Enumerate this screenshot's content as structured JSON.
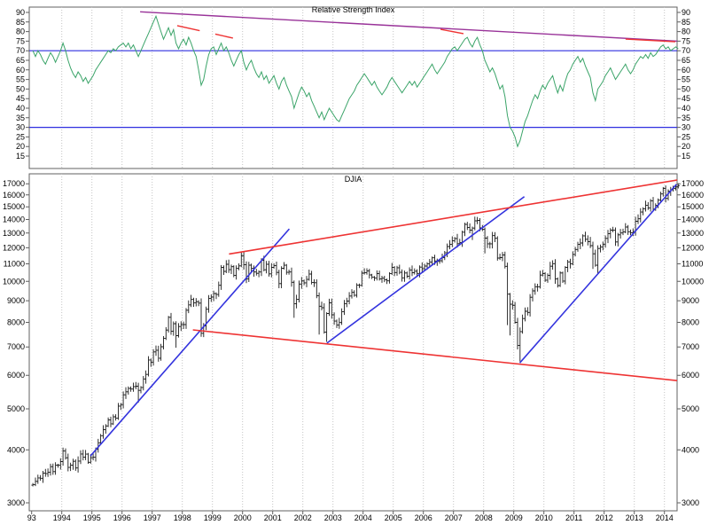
{
  "x_axis": {
    "years": [
      1993,
      1994,
      1995,
      1996,
      1997,
      1998,
      1999,
      2000,
      2001,
      2002,
      2003,
      2004,
      2005,
      2006,
      2007,
      2008,
      2009,
      2010,
      2011,
      2012,
      2013,
      2014
    ],
    "labels": [
      "93",
      "1994",
      "1995",
      "1996",
      "1997",
      "1998",
      "1999",
      "2000",
      "2001",
      "2002",
      "2003",
      "2004",
      "2005",
      "2006",
      "2007",
      "2008",
      "2009",
      "2010",
      "2011",
      "2012",
      "2013",
      "2014"
    ]
  },
  "colors": {
    "grid": "#c4c4c4",
    "panel_border": "#606060",
    "axis_text": "#000000"
  },
  "chart_data": [
    {
      "type": "line",
      "panel": "top",
      "title": "Relative Strength Index",
      "interval": "monthly",
      "x_start": 1993.0,
      "ylim": [
        15,
        90
      ],
      "yticks": [
        90,
        85,
        80,
        75,
        70,
        65,
        60,
        55,
        50,
        45,
        40,
        35,
        30,
        25,
        20,
        15
      ],
      "line_color": "#3BA469",
      "hlines": [
        {
          "name": "overbought-70",
          "value": 70,
          "color": "#2F2FE0"
        },
        {
          "name": "oversold-30",
          "value": 30,
          "color": "#2F2FE0"
        }
      ],
      "trendlines": [
        {
          "name": "rsi-long-term-divergence",
          "x1": 1996.6,
          "v1": 90.3,
          "x2": 2014.42,
          "v2": 75.0,
          "color": "#993399",
          "dash": ""
        },
        {
          "name": "rsi-divergence-1997-1999",
          "x1": 1997.83,
          "v1": 83.1,
          "x2": 1999.68,
          "v2": 76.6,
          "color": "#EE3333",
          "dash": "26,18"
        },
        {
          "name": "rsi-divergence-2007",
          "x1": 2006.57,
          "v1": 81.2,
          "x2": 2007.33,
          "v2": 78.9,
          "color": "#EE3333",
          "dash": ""
        },
        {
          "name": "rsi-divergence-2013",
          "x1": 2012.71,
          "v1": 76.1,
          "x2": 2014.36,
          "v2": 74.7,
          "color": "#EE3333",
          "dash": ""
        }
      ],
      "values": [
        70,
        67,
        70,
        68,
        65,
        63,
        66,
        69,
        67,
        64,
        67,
        70,
        74,
        70,
        65,
        61,
        58,
        56,
        59,
        57,
        54,
        56,
        53,
        55,
        57,
        60,
        62,
        64,
        66,
        68,
        70,
        69,
        71,
        70,
        72,
        73,
        74,
        72,
        74,
        71,
        73,
        70,
        67,
        70,
        73,
        76,
        79,
        82,
        85,
        88,
        84,
        80,
        76,
        79,
        82,
        78,
        81,
        74,
        71,
        74,
        76,
        73,
        77,
        74,
        70,
        67,
        60,
        52,
        55,
        62,
        68,
        71,
        72,
        68,
        71,
        74,
        70,
        72,
        69,
        65,
        62,
        65,
        68,
        70,
        64,
        60,
        63,
        65,
        61,
        58,
        56,
        59,
        55,
        57,
        53,
        55,
        57,
        53,
        50,
        54,
        56,
        52,
        49,
        46,
        40,
        44,
        48,
        51,
        49,
        46,
        48,
        44,
        41,
        38,
        35,
        38,
        34,
        37,
        40,
        38,
        36,
        34,
        33,
        36,
        39,
        42,
        45,
        47,
        49,
        52,
        54,
        56,
        58,
        56,
        54,
        52,
        54,
        51,
        49,
        47,
        49,
        51,
        54,
        56,
        54,
        52,
        50,
        48,
        50,
        52,
        54,
        52,
        54,
        51,
        53,
        55,
        57,
        59,
        61,
        63,
        60,
        58,
        60,
        62,
        64,
        67,
        69,
        71,
        72,
        70,
        72,
        74,
        76,
        77,
        74,
        72,
        75,
        77,
        73,
        70,
        65,
        62,
        59,
        61,
        58,
        54,
        50,
        52,
        46,
        36,
        30,
        28,
        25,
        20,
        23,
        28,
        33,
        36,
        40,
        44,
        47,
        45,
        49,
        52,
        50,
        53,
        55,
        57,
        52,
        48,
        52,
        49,
        54,
        58,
        60,
        63,
        65,
        67,
        64,
        66,
        62,
        59,
        56,
        48,
        44,
        50,
        52,
        54,
        57,
        59,
        61,
        58,
        55,
        57,
        59,
        61,
        63,
        60,
        58,
        60,
        63,
        65,
        67,
        66,
        68,
        66,
        69,
        67,
        68,
        70,
        72,
        73,
        71,
        72,
        70,
        71,
        72,
        71
      ]
    },
    {
      "type": "ohlc-bar",
      "panel": "bottom",
      "title": "DJIA",
      "interval": "monthly",
      "x_start": 1993.0,
      "scale": "log",
      "ylim": [
        2900,
        17600
      ],
      "yticks": [
        17000,
        16000,
        15000,
        14000,
        13000,
        12000,
        11000,
        10000,
        9000,
        8000,
        7000,
        6000,
        5000,
        4000,
        3000
      ],
      "bar_color": "#1a1a1a",
      "open_first": 3301,
      "trendlines": [
        {
          "name": "bull-support-1995-2001",
          "x1": 1994.95,
          "v1": 3870,
          "x2": 2001.55,
          "v2": 13300,
          "color": "#3434DE",
          "dash": ""
        },
        {
          "name": "bull-support-2002-2009",
          "x1": 2002.8,
          "v1": 7150,
          "x2": 2009.35,
          "v2": 15850,
          "color": "#3434DE",
          "dash": ""
        },
        {
          "name": "bull-support-2009-2014",
          "x1": 2009.2,
          "v1": 6420,
          "x2": 2014.4,
          "v2": 16950,
          "color": "#3434DE",
          "dash": ""
        },
        {
          "name": "megaphone-upper-resistance",
          "x1": 1999.55,
          "v1": 11600,
          "x2": 2014.42,
          "v2": 17350,
          "color": "#EE3333",
          "dash": ""
        },
        {
          "name": "megaphone-lower-support",
          "x1": 1998.35,
          "v1": 7680,
          "x2": 2014.42,
          "v2": 5830,
          "color": "#EE3333",
          "dash": ""
        }
      ],
      "overrides": {
        "42": {
          "low": 5170
        },
        "57": {
          "low": 6972
        },
        "67": {
          "low": 7400
        },
        "84": {
          "high": 11750
        },
        "104": {
          "low": 8200
        },
        "114": {
          "low": 7490
        },
        "117": {
          "low": 7197
        },
        "175": {
          "low": 12520
        },
        "177": {
          "high": 14198
        },
        "180": {
          "low": 11635
        },
        "189": {
          "low": 7883
        },
        "190": {
          "low": 7449
        },
        "194": {
          "low": 6470
        },
        "208": {
          "low": 9870
        },
        "223": {
          "low": 10700
        },
        "225": {
          "low": 10404
        }
      },
      "closes": [
        3310,
        3371,
        3435,
        3428,
        3527,
        3516,
        3540,
        3651,
        3555,
        3681,
        3684,
        3754,
        3978,
        3832,
        3636,
        3682,
        3758,
        3625,
        3765,
        3913,
        3843,
        3908,
        3739,
        3834,
        3844,
        4011,
        4158,
        4321,
        4465,
        4556,
        4708,
        4610,
        4789,
        4756,
        5075,
        5117,
        5395,
        5486,
        5587,
        5569,
        5643,
        5655,
        5529,
        5616,
        5882,
        6029,
        6522,
        6448,
        6813,
        6878,
        6584,
        7009,
        7331,
        7673,
        8223,
        7622,
        7945,
        7442,
        7823,
        7908,
        7907,
        8546,
        8800,
        9063,
        8900,
        8952,
        8883,
        7539,
        7843,
        8592,
        9117,
        9181,
        9359,
        9307,
        9786,
        10789,
        10560,
        10971,
        10655,
        10829,
        10337,
        10730,
        10878,
        11497,
        10941,
        10128,
        10922,
        10734,
        10522,
        10448,
        10522,
        11215,
        10651,
        10971,
        10414,
        10788,
        10887,
        10495,
        9879,
        10735,
        10912,
        10502,
        10523,
        9950,
        8848,
        9075,
        9852,
        10022,
        9920,
        10106,
        10404,
        9946,
        9925,
        9243,
        8737,
        8664,
        7592,
        8397,
        8896,
        8342,
        8054,
        7891,
        7992,
        8480,
        8850,
        8985,
        9234,
        9416,
        9275,
        9801,
        9782,
        10454,
        10488,
        10584,
        10358,
        10226,
        10188,
        10435,
        10140,
        10174,
        10080,
        10027,
        10428,
        10783,
        10490,
        10766,
        10504,
        10193,
        10467,
        10275,
        10641,
        10482,
        10569,
        10440,
        10806,
        10718,
        10865,
        10993,
        11109,
        11367,
        11168,
        11150,
        11186,
        11381,
        11679,
        12081,
        12222,
        12463,
        12622,
        12269,
        12354,
        13063,
        13628,
        13409,
        13212,
        13358,
        13896,
        13930,
        13372,
        13265,
        12650,
        12266,
        12263,
        12820,
        12638,
        11350,
        11378,
        11544,
        10851,
        9325,
        8829,
        8776,
        8001,
        7063,
        7609,
        8168,
        8500,
        8447,
        9172,
        9496,
        9712,
        9713,
        10345,
        10428,
        10067,
        10325,
        10857,
        11009,
        10137,
        9774,
        10466,
        10015,
        10788,
        11118,
        11006,
        11578,
        11892,
        12226,
        12320,
        12811,
        12570,
        12414,
        12143,
        11614,
        10913,
        11955,
        12046,
        12218,
        12633,
        12952,
        13212,
        13214,
        12393,
        12880,
        13009,
        13091,
        13437,
        13096,
        13026,
        13104,
        13861,
        14054,
        14579,
        14840,
        15116,
        14910,
        15500,
        14810,
        15130,
        15546,
        16086,
        16577,
        15699,
        16322,
        16458,
        16581,
        16717,
        16827
      ]
    }
  ]
}
